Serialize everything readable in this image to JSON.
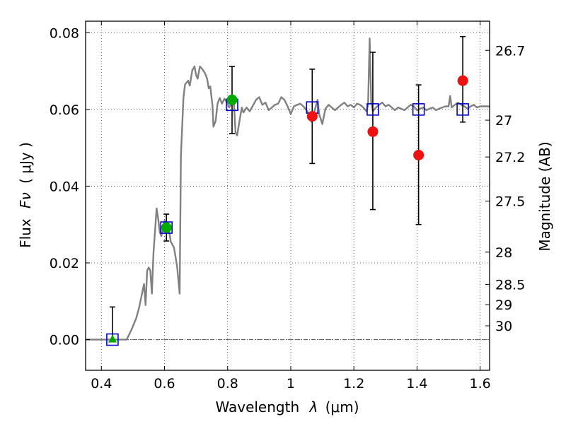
{
  "chart_data": {
    "type": "scatter",
    "title": "",
    "xlabel": "Wavelength",
    "xlabel_symbol": "λ",
    "xlabel_unit": "(μm)",
    "ylabel": "Flux",
    "ylabel_symbol": "Fν",
    "ylabel_unit": "( μJy )",
    "y2label": "Magnitude (AB)",
    "xlim": [
      0.35,
      1.63
    ],
    "ylim": [
      -0.008,
      0.083
    ],
    "grid": true,
    "x_ticks": [
      0.4,
      0.6,
      0.8,
      1.0,
      1.2,
      1.4,
      1.6
    ],
    "x_tick_labels": [
      "0.4",
      "0.6",
      "0.8",
      "1",
      "1.2",
      "1.4",
      "1.6"
    ],
    "y_ticks": [
      0.0,
      0.02,
      0.04,
      0.06,
      0.08
    ],
    "y_tick_labels": [
      "0.00",
      "0.02",
      "0.04",
      "0.06",
      "0.08"
    ],
    "y2_ticks": [
      {
        "label": "26.7",
        "flux": 0.0754
      },
      {
        "label": "27",
        "flux": 0.0572
      },
      {
        "label": "27.2",
        "flux": 0.0476
      },
      {
        "label": "27.5",
        "flux": 0.0361
      },
      {
        "label": "28",
        "flux": 0.0228
      },
      {
        "label": "28.5",
        "flux": 0.0144
      },
      {
        "label": "29",
        "flux": 0.0091
      },
      {
        "label": "30",
        "flux": 0.0036
      }
    ],
    "zero_line": {
      "y": 0.0,
      "color": "#555555"
    },
    "series": [
      {
        "kind": "sed_model",
        "color": "#808080",
        "points": [
          [
            0.35,
            0.0
          ],
          [
            0.48,
            0.0
          ],
          [
            0.495,
            0.0025
          ],
          [
            0.51,
            0.0055
          ],
          [
            0.52,
            0.0085
          ],
          [
            0.53,
            0.0125
          ],
          [
            0.535,
            0.0145
          ],
          [
            0.54,
            0.009
          ],
          [
            0.545,
            0.018
          ],
          [
            0.55,
            0.0188
          ],
          [
            0.555,
            0.018
          ],
          [
            0.56,
            0.012
          ],
          [
            0.565,
            0.0225
          ],
          [
            0.575,
            0.0342
          ],
          [
            0.58,
            0.0315
          ],
          [
            0.585,
            0.028
          ],
          [
            0.59,
            0.027
          ],
          [
            0.6,
            0.031
          ],
          [
            0.608,
            0.029
          ],
          [
            0.615,
            0.028
          ],
          [
            0.62,
            0.0255
          ],
          [
            0.63,
            0.024
          ],
          [
            0.64,
            0.019
          ],
          [
            0.648,
            0.012
          ],
          [
            0.652,
            0.048
          ],
          [
            0.66,
            0.063
          ],
          [
            0.665,
            0.0665
          ],
          [
            0.675,
            0.0675
          ],
          [
            0.68,
            0.0662
          ],
          [
            0.688,
            0.0702
          ],
          [
            0.695,
            0.0712
          ],
          [
            0.7,
            0.069
          ],
          [
            0.705,
            0.068
          ],
          [
            0.712,
            0.0712
          ],
          [
            0.72,
            0.0705
          ],
          [
            0.728,
            0.0695
          ],
          [
            0.735,
            0.068
          ],
          [
            0.74,
            0.0655
          ],
          [
            0.745,
            0.066
          ],
          [
            0.752,
            0.061
          ],
          [
            0.755,
            0.0555
          ],
          [
            0.762,
            0.057
          ],
          [
            0.768,
            0.0615
          ],
          [
            0.775,
            0.063
          ],
          [
            0.782,
            0.0615
          ],
          [
            0.79,
            0.0628
          ],
          [
            0.798,
            0.0618
          ],
          [
            0.805,
            0.0605
          ],
          [
            0.81,
            0.0612
          ],
          [
            0.815,
            0.062
          ],
          [
            0.82,
            0.0615
          ],
          [
            0.825,
            0.054
          ],
          [
            0.83,
            0.0532
          ],
          [
            0.838,
            0.0572
          ],
          [
            0.845,
            0.0605
          ],
          [
            0.85,
            0.0592
          ],
          [
            0.86,
            0.0605
          ],
          [
            0.87,
            0.0595
          ],
          [
            0.88,
            0.061
          ],
          [
            0.89,
            0.0625
          ],
          [
            0.9,
            0.0632
          ],
          [
            0.91,
            0.0612
          ],
          [
            0.92,
            0.0618
          ],
          [
            0.93,
            0.0598
          ],
          [
            0.94,
            0.0605
          ],
          [
            0.95,
            0.0612
          ],
          [
            0.96,
            0.0615
          ],
          [
            0.97,
            0.0632
          ],
          [
            0.98,
            0.0625
          ],
          [
            0.99,
            0.0608
          ],
          [
            1.0,
            0.0588
          ],
          [
            1.01,
            0.0608
          ],
          [
            1.02,
            0.0612
          ],
          [
            1.03,
            0.0615
          ],
          [
            1.04,
            0.0608
          ],
          [
            1.05,
            0.0598
          ],
          [
            1.06,
            0.0585
          ],
          [
            1.065,
            0.0568
          ],
          [
            1.075,
            0.0595
          ],
          [
            1.085,
            0.0625
          ],
          [
            1.09,
            0.0588
          ],
          [
            1.1,
            0.0562
          ],
          [
            1.11,
            0.0602
          ],
          [
            1.12,
            0.0612
          ],
          [
            1.13,
            0.0605
          ],
          [
            1.14,
            0.0598
          ],
          [
            1.15,
            0.0605
          ],
          [
            1.16,
            0.0612
          ],
          [
            1.17,
            0.0618
          ],
          [
            1.18,
            0.0608
          ],
          [
            1.19,
            0.0612
          ],
          [
            1.2,
            0.0605
          ],
          [
            1.21,
            0.0615
          ],
          [
            1.22,
            0.0612
          ],
          [
            1.23,
            0.0605
          ],
          [
            1.24,
            0.0595
          ],
          [
            1.245,
            0.0612
          ],
          [
            1.25,
            0.0785
          ],
          [
            1.255,
            0.0618
          ],
          [
            1.26,
            0.0595
          ],
          [
            1.27,
            0.0605
          ],
          [
            1.28,
            0.0612
          ],
          [
            1.29,
            0.0618
          ],
          [
            1.3,
            0.0608
          ],
          [
            1.31,
            0.0612
          ],
          [
            1.32,
            0.0605
          ],
          [
            1.33,
            0.0598
          ],
          [
            1.34,
            0.0605
          ],
          [
            1.35,
            0.0602
          ],
          [
            1.36,
            0.0598
          ],
          [
            1.37,
            0.0605
          ],
          [
            1.38,
            0.0612
          ],
          [
            1.39,
            0.0608
          ],
          [
            1.4,
            0.0598
          ],
          [
            1.41,
            0.0602
          ],
          [
            1.42,
            0.0605
          ],
          [
            1.43,
            0.0598
          ],
          [
            1.44,
            0.0602
          ],
          [
            1.45,
            0.0605
          ],
          [
            1.46,
            0.0598
          ],
          [
            1.47,
            0.0602
          ],
          [
            1.48,
            0.0605
          ],
          [
            1.49,
            0.0608
          ],
          [
            1.5,
            0.0608
          ],
          [
            1.505,
            0.0635
          ],
          [
            1.51,
            0.0605
          ],
          [
            1.52,
            0.0612
          ],
          [
            1.53,
            0.0618
          ],
          [
            1.54,
            0.0612
          ],
          [
            1.55,
            0.0608
          ],
          [
            1.56,
            0.0602
          ],
          [
            1.57,
            0.0608
          ],
          [
            1.58,
            0.0612
          ],
          [
            1.59,
            0.0605
          ],
          [
            1.6,
            0.0608
          ],
          [
            1.63,
            0.0608
          ]
        ]
      },
      {
        "kind": "model_photometry",
        "marker": "open-square",
        "color": "#0000cc",
        "points": [
          {
            "x": 0.435,
            "y": 0.0
          },
          {
            "x": 0.606,
            "y": 0.0292
          },
          {
            "x": 0.814,
            "y": 0.0612
          },
          {
            "x": 1.068,
            "y": 0.0605
          },
          {
            "x": 1.26,
            "y": 0.06
          },
          {
            "x": 1.405,
            "y": 0.06
          },
          {
            "x": 1.545,
            "y": 0.06
          }
        ]
      },
      {
        "kind": "upper_limit",
        "marker": "triangle",
        "color": "#00aa00",
        "points": [
          {
            "x": 0.435,
            "y": 0.0,
            "err_low": 0.0,
            "err_high": 0.0085
          }
        ]
      },
      {
        "kind": "optical_detection",
        "marker": "circle",
        "color": "#00aa00",
        "points": [
          {
            "x": 0.606,
            "y": 0.0292,
            "err_low": 0.0035,
            "err_high": 0.0035
          },
          {
            "x": 0.814,
            "y": 0.0625,
            "err_low": 0.0088,
            "err_high": 0.0087
          }
        ]
      },
      {
        "kind": "nir_detection",
        "marker": "circle",
        "color": "#ee1111",
        "points": [
          {
            "x": 1.068,
            "y": 0.0582,
            "err_low": 0.0123,
            "err_high": 0.0123
          },
          {
            "x": 1.26,
            "y": 0.0542,
            "err_low": 0.0203,
            "err_high": 0.0207
          },
          {
            "x": 1.405,
            "y": 0.0481,
            "err_low": 0.0181,
            "err_high": 0.0183
          },
          {
            "x": 1.545,
            "y": 0.0675,
            "err_low": 0.0108,
            "err_high": 0.0115
          }
        ]
      }
    ]
  }
}
